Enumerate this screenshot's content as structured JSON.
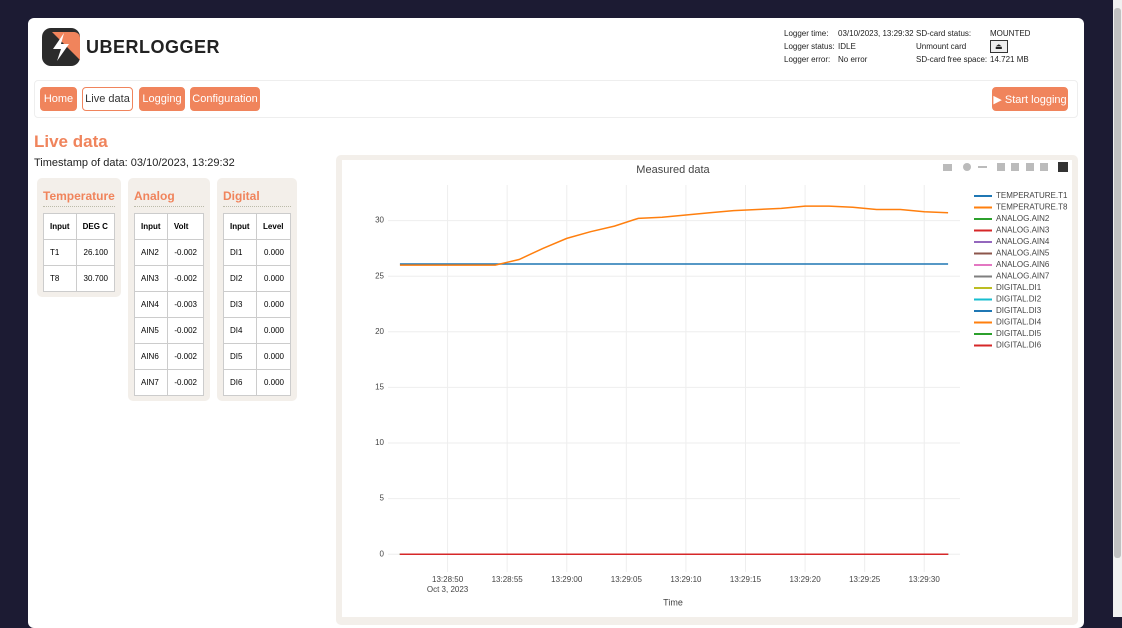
{
  "header": {
    "brand": "UBERLOGGER",
    "status_left": [
      {
        "label": "Logger time:",
        "value": "03/10/2023, 13:29:32"
      },
      {
        "label": "Logger status:",
        "value": "IDLE"
      },
      {
        "label": "Logger error:",
        "value": "No error"
      }
    ],
    "status_right": [
      {
        "label": "SD-card status:",
        "value": "MOUNTED"
      },
      {
        "label": "Unmount card",
        "value": "⏏"
      },
      {
        "label": "SD-card free space:",
        "value": "14.721 MB"
      }
    ]
  },
  "nav": {
    "items": [
      "Home",
      "Live data",
      "Logging",
      "Configuration"
    ],
    "active": 1,
    "action": "▶ Start logging"
  },
  "page": {
    "title": "Live data",
    "timestamp": "Timestamp of data: 03/10/2023, 13:29:32"
  },
  "panels": [
    {
      "title": "Temperature",
      "headers": [
        "Input",
        "DEG C"
      ],
      "rows": [
        [
          "T1",
          "26.100"
        ],
        [
          "T8",
          "30.700"
        ]
      ]
    },
    {
      "title": "Analog",
      "headers": [
        "Input",
        "Volt"
      ],
      "rows": [
        [
          "AIN2",
          "-0.002"
        ],
        [
          "AIN3",
          "-0.002"
        ],
        [
          "AIN4",
          "-0.003"
        ],
        [
          "AIN5",
          "-0.002"
        ],
        [
          "AIN6",
          "-0.002"
        ],
        [
          "AIN7",
          "-0.002"
        ]
      ]
    },
    {
      "title": "Digital",
      "headers": [
        "Input",
        "Level"
      ],
      "rows": [
        [
          "DI1",
          "0.000"
        ],
        [
          "DI2",
          "0.000"
        ],
        [
          "DI3",
          "0.000"
        ],
        [
          "DI4",
          "0.000"
        ],
        [
          "DI5",
          "0.000"
        ],
        [
          "DI6",
          "0.000"
        ]
      ]
    }
  ],
  "chart_data": {
    "type": "line",
    "title": "Measured data",
    "x_label": "Time",
    "x_date_label": "Oct 3, 2023",
    "x": [
      "13:28:46",
      "13:28:48",
      "13:28:50",
      "13:28:52",
      "13:28:54",
      "13:28:56",
      "13:28:58",
      "13:29:00",
      "13:29:02",
      "13:29:04",
      "13:29:06",
      "13:29:08",
      "13:29:10",
      "13:29:12",
      "13:29:14",
      "13:29:16",
      "13:29:18",
      "13:29:20",
      "13:29:22",
      "13:29:24",
      "13:29:26",
      "13:29:28",
      "13:29:30",
      "13:29:32"
    ],
    "xlim": [
      "13:28:45",
      "13:29:33"
    ],
    "xticks": [
      "13:28:50",
      "13:28:55",
      "13:29:00",
      "13:29:05",
      "13:29:10",
      "13:29:15",
      "13:29:20",
      "13:29:25",
      "13:29:30"
    ],
    "ylim": [
      -1.6,
      33.2
    ],
    "yticks": [
      0,
      5,
      10,
      15,
      20,
      25,
      30
    ],
    "grid": true,
    "series": [
      {
        "name": "TEMPERATURE.T1",
        "color": "#1f77b4",
        "values": [
          26.1,
          26.1,
          26.1,
          26.1,
          26.1,
          26.1,
          26.1,
          26.1,
          26.1,
          26.1,
          26.1,
          26.1,
          26.1,
          26.1,
          26.1,
          26.1,
          26.1,
          26.1,
          26.1,
          26.1,
          26.1,
          26.1,
          26.1,
          26.1
        ]
      },
      {
        "name": "TEMPERATURE.T8",
        "color": "#ff7f0e",
        "values": [
          26.0,
          26.0,
          26.0,
          26.0,
          26.0,
          26.5,
          27.5,
          28.4,
          29.0,
          29.5,
          30.2,
          30.3,
          30.5,
          30.7,
          30.9,
          31.0,
          31.1,
          31.3,
          31.3,
          31.2,
          31.0,
          31.0,
          30.8,
          30.7
        ]
      },
      {
        "name": "ANALOG.AIN2",
        "color": "#2ca02c",
        "values": [
          0,
          0,
          0,
          0,
          0,
          0,
          0,
          0,
          0,
          0,
          0,
          0,
          0,
          0,
          0,
          0,
          0,
          0,
          0,
          0,
          0,
          0,
          0,
          0
        ]
      },
      {
        "name": "ANALOG.AIN3",
        "color": "#d62728",
        "values": [
          0,
          0,
          0,
          0,
          0,
          0,
          0,
          0,
          0,
          0,
          0,
          0,
          0,
          0,
          0,
          0,
          0,
          0,
          0,
          0,
          0,
          0,
          0,
          0
        ]
      },
      {
        "name": "ANALOG.AIN4",
        "color": "#9467bd",
        "values": [
          0,
          0,
          0,
          0,
          0,
          0,
          0,
          0,
          0,
          0,
          0,
          0,
          0,
          0,
          0,
          0,
          0,
          0,
          0,
          0,
          0,
          0,
          0,
          0
        ]
      },
      {
        "name": "ANALOG.AIN5",
        "color": "#8c564b",
        "values": [
          0,
          0,
          0,
          0,
          0,
          0,
          0,
          0,
          0,
          0,
          0,
          0,
          0,
          0,
          0,
          0,
          0,
          0,
          0,
          0,
          0,
          0,
          0,
          0
        ]
      },
      {
        "name": "ANALOG.AIN6",
        "color": "#e377c2",
        "values": [
          0,
          0,
          0,
          0,
          0,
          0,
          0,
          0,
          0,
          0,
          0,
          0,
          0,
          0,
          0,
          0,
          0,
          0,
          0,
          0,
          0,
          0,
          0,
          0
        ]
      },
      {
        "name": "ANALOG.AIN7",
        "color": "#7f7f7f",
        "values": [
          0,
          0,
          0,
          0,
          0,
          0,
          0,
          0,
          0,
          0,
          0,
          0,
          0,
          0,
          0,
          0,
          0,
          0,
          0,
          0,
          0,
          0,
          0,
          0
        ]
      },
      {
        "name": "DIGITAL.DI1",
        "color": "#bcbd22",
        "values": [
          0,
          0,
          0,
          0,
          0,
          0,
          0,
          0,
          0,
          0,
          0,
          0,
          0,
          0,
          0,
          0,
          0,
          0,
          0,
          0,
          0,
          0,
          0,
          0
        ]
      },
      {
        "name": "DIGITAL.DI2",
        "color": "#17becf",
        "values": [
          0,
          0,
          0,
          0,
          0,
          0,
          0,
          0,
          0,
          0,
          0,
          0,
          0,
          0,
          0,
          0,
          0,
          0,
          0,
          0,
          0,
          0,
          0,
          0
        ]
      },
      {
        "name": "DIGITAL.DI3",
        "color": "#1f77b4",
        "values": [
          0,
          0,
          0,
          0,
          0,
          0,
          0,
          0,
          0,
          0,
          0,
          0,
          0,
          0,
          0,
          0,
          0,
          0,
          0,
          0,
          0,
          0,
          0,
          0
        ]
      },
      {
        "name": "DIGITAL.DI4",
        "color": "#ff7f0e",
        "values": [
          0,
          0,
          0,
          0,
          0,
          0,
          0,
          0,
          0,
          0,
          0,
          0,
          0,
          0,
          0,
          0,
          0,
          0,
          0,
          0,
          0,
          0,
          0,
          0
        ]
      },
      {
        "name": "DIGITAL.DI5",
        "color": "#2ca02c",
        "values": [
          0,
          0,
          0,
          0,
          0,
          0,
          0,
          0,
          0,
          0,
          0,
          0,
          0,
          0,
          0,
          0,
          0,
          0,
          0,
          0,
          0,
          0,
          0,
          0
        ]
      },
      {
        "name": "DIGITAL.DI6",
        "color": "#d62728",
        "values": [
          0,
          0,
          0,
          0,
          0,
          0,
          0,
          0,
          0,
          0,
          0,
          0,
          0,
          0,
          0,
          0,
          0,
          0,
          0,
          0,
          0,
          0,
          0,
          0
        ]
      }
    ]
  }
}
